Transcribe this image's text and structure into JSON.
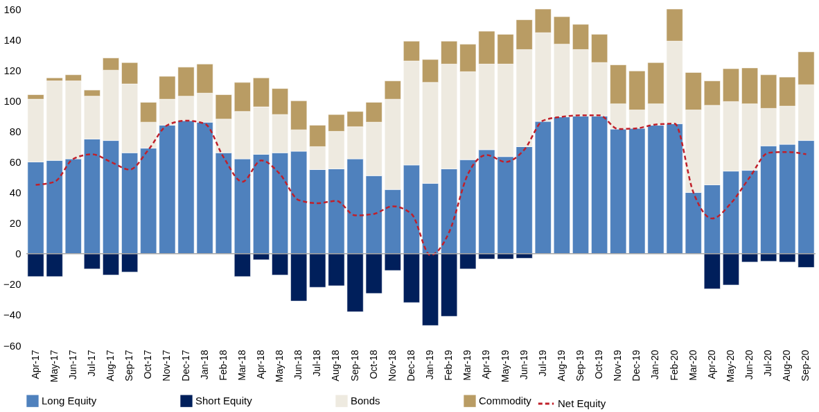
{
  "chart_data": {
    "type": "bar",
    "stacked": true,
    "categories": [
      "Apr-17",
      "May-17",
      "Jun-17",
      "Jul-17",
      "Aug-17",
      "Sep-17",
      "Oct-17",
      "Nov-17",
      "Dec-17",
      "Jan-18",
      "Feb-18",
      "Mar-18",
      "Apr-18",
      "May-18",
      "Jun-18",
      "Jul-18",
      "Aug-18",
      "Sep-18",
      "Oct-18",
      "Nov-18",
      "Dec-18",
      "Jan-19",
      "Feb-19",
      "Mar-19",
      "Apr-19",
      "May-19",
      "Jun-19",
      "Jul-19",
      "Aug-19",
      "Sep-19",
      "Oct-19",
      "Nov-19",
      "Dec-19",
      "Jan-20",
      "Feb-20",
      "Mar-20",
      "Apr-20",
      "May-20",
      "Jun-20",
      "Jul-20",
      "Aug-20",
      "Sep-20"
    ],
    "series": [
      {
        "name": "Long Equity",
        "color": "#4f81bd",
        "values": [
          60,
          61,
          62,
          75,
          74,
          66,
          69,
          84,
          87,
          86,
          66,
          62,
          65,
          66,
          67,
          55,
          55.5,
          62,
          51,
          42,
          58,
          46,
          55.5,
          61.5,
          68,
          63.5,
          70,
          86.5,
          89.5,
          90,
          90,
          81.5,
          82,
          84,
          85,
          40,
          45,
          54,
          54.5,
          70.5,
          71.5,
          74
        ]
      },
      {
        "name": "Short Equity",
        "color": "#001f5b",
        "values": [
          -15,
          -15,
          null,
          -10,
          -14,
          -12,
          null,
          null,
          null,
          null,
          null,
          -15,
          -4,
          -14,
          -31,
          -22,
          -21,
          -38,
          -26,
          -11,
          -32,
          -47,
          -41,
          -10,
          -3.5,
          -3.5,
          -3,
          null,
          null,
          null,
          null,
          null,
          null,
          null,
          null,
          null,
          -23,
          -20.5,
          -5.5,
          -5,
          -5.5,
          -9
        ]
      },
      {
        "name": "Bonds",
        "color": "#eeeae0",
        "values": [
          41,
          52,
          51,
          28,
          46,
          45,
          17,
          17,
          16,
          19,
          22,
          31,
          31,
          25,
          14,
          15,
          24.5,
          21,
          35,
          59,
          68,
          66,
          68.5,
          57.5,
          56,
          60.5,
          63.5,
          58,
          47.5,
          43.5,
          35,
          16.5,
          12,
          14,
          54,
          54,
          52,
          45.5,
          43.5,
          24.5,
          25,
          36.5
        ]
      },
      {
        "name": "Commodity",
        "color": "#b99c64",
        "values": [
          3,
          2,
          4,
          4,
          8,
          14,
          13,
          15,
          19,
          19,
          16,
          19,
          19,
          17,
          19,
          14,
          11,
          10,
          13,
          12,
          13,
          15,
          15,
          18,
          21.5,
          19.5,
          19.5,
          15.5,
          18,
          16.5,
          18.5,
          25.5,
          25.5,
          27,
          21,
          24.5,
          16,
          21.5,
          23.5,
          22,
          19,
          21.5
        ]
      },
      {
        "name": "Net Equity",
        "type": "line",
        "color": "#c0202a",
        "line_style": "dashed",
        "values": [
          45,
          47,
          62,
          65,
          60,
          55,
          68,
          84,
          87,
          85,
          63,
          47,
          61,
          52,
          35,
          33,
          34.5,
          25,
          26,
          31,
          26,
          -1,
          14,
          52,
          64.5,
          60,
          68,
          87,
          89.5,
          90.5,
          90.5,
          81.5,
          82,
          84.5,
          85,
          40,
          23,
          33,
          50,
          66,
          66.5,
          65
        ]
      }
    ],
    "ylim": [
      -60,
      160
    ],
    "yticks": [
      -60,
      -40,
      -20,
      0,
      20,
      40,
      60,
      80,
      100,
      120,
      140,
      160
    ],
    "ref_lines": [
      {
        "axis": "y",
        "value": 0,
        "color": "#a6a6a6"
      }
    ],
    "grid": false,
    "legend": "bottom"
  }
}
